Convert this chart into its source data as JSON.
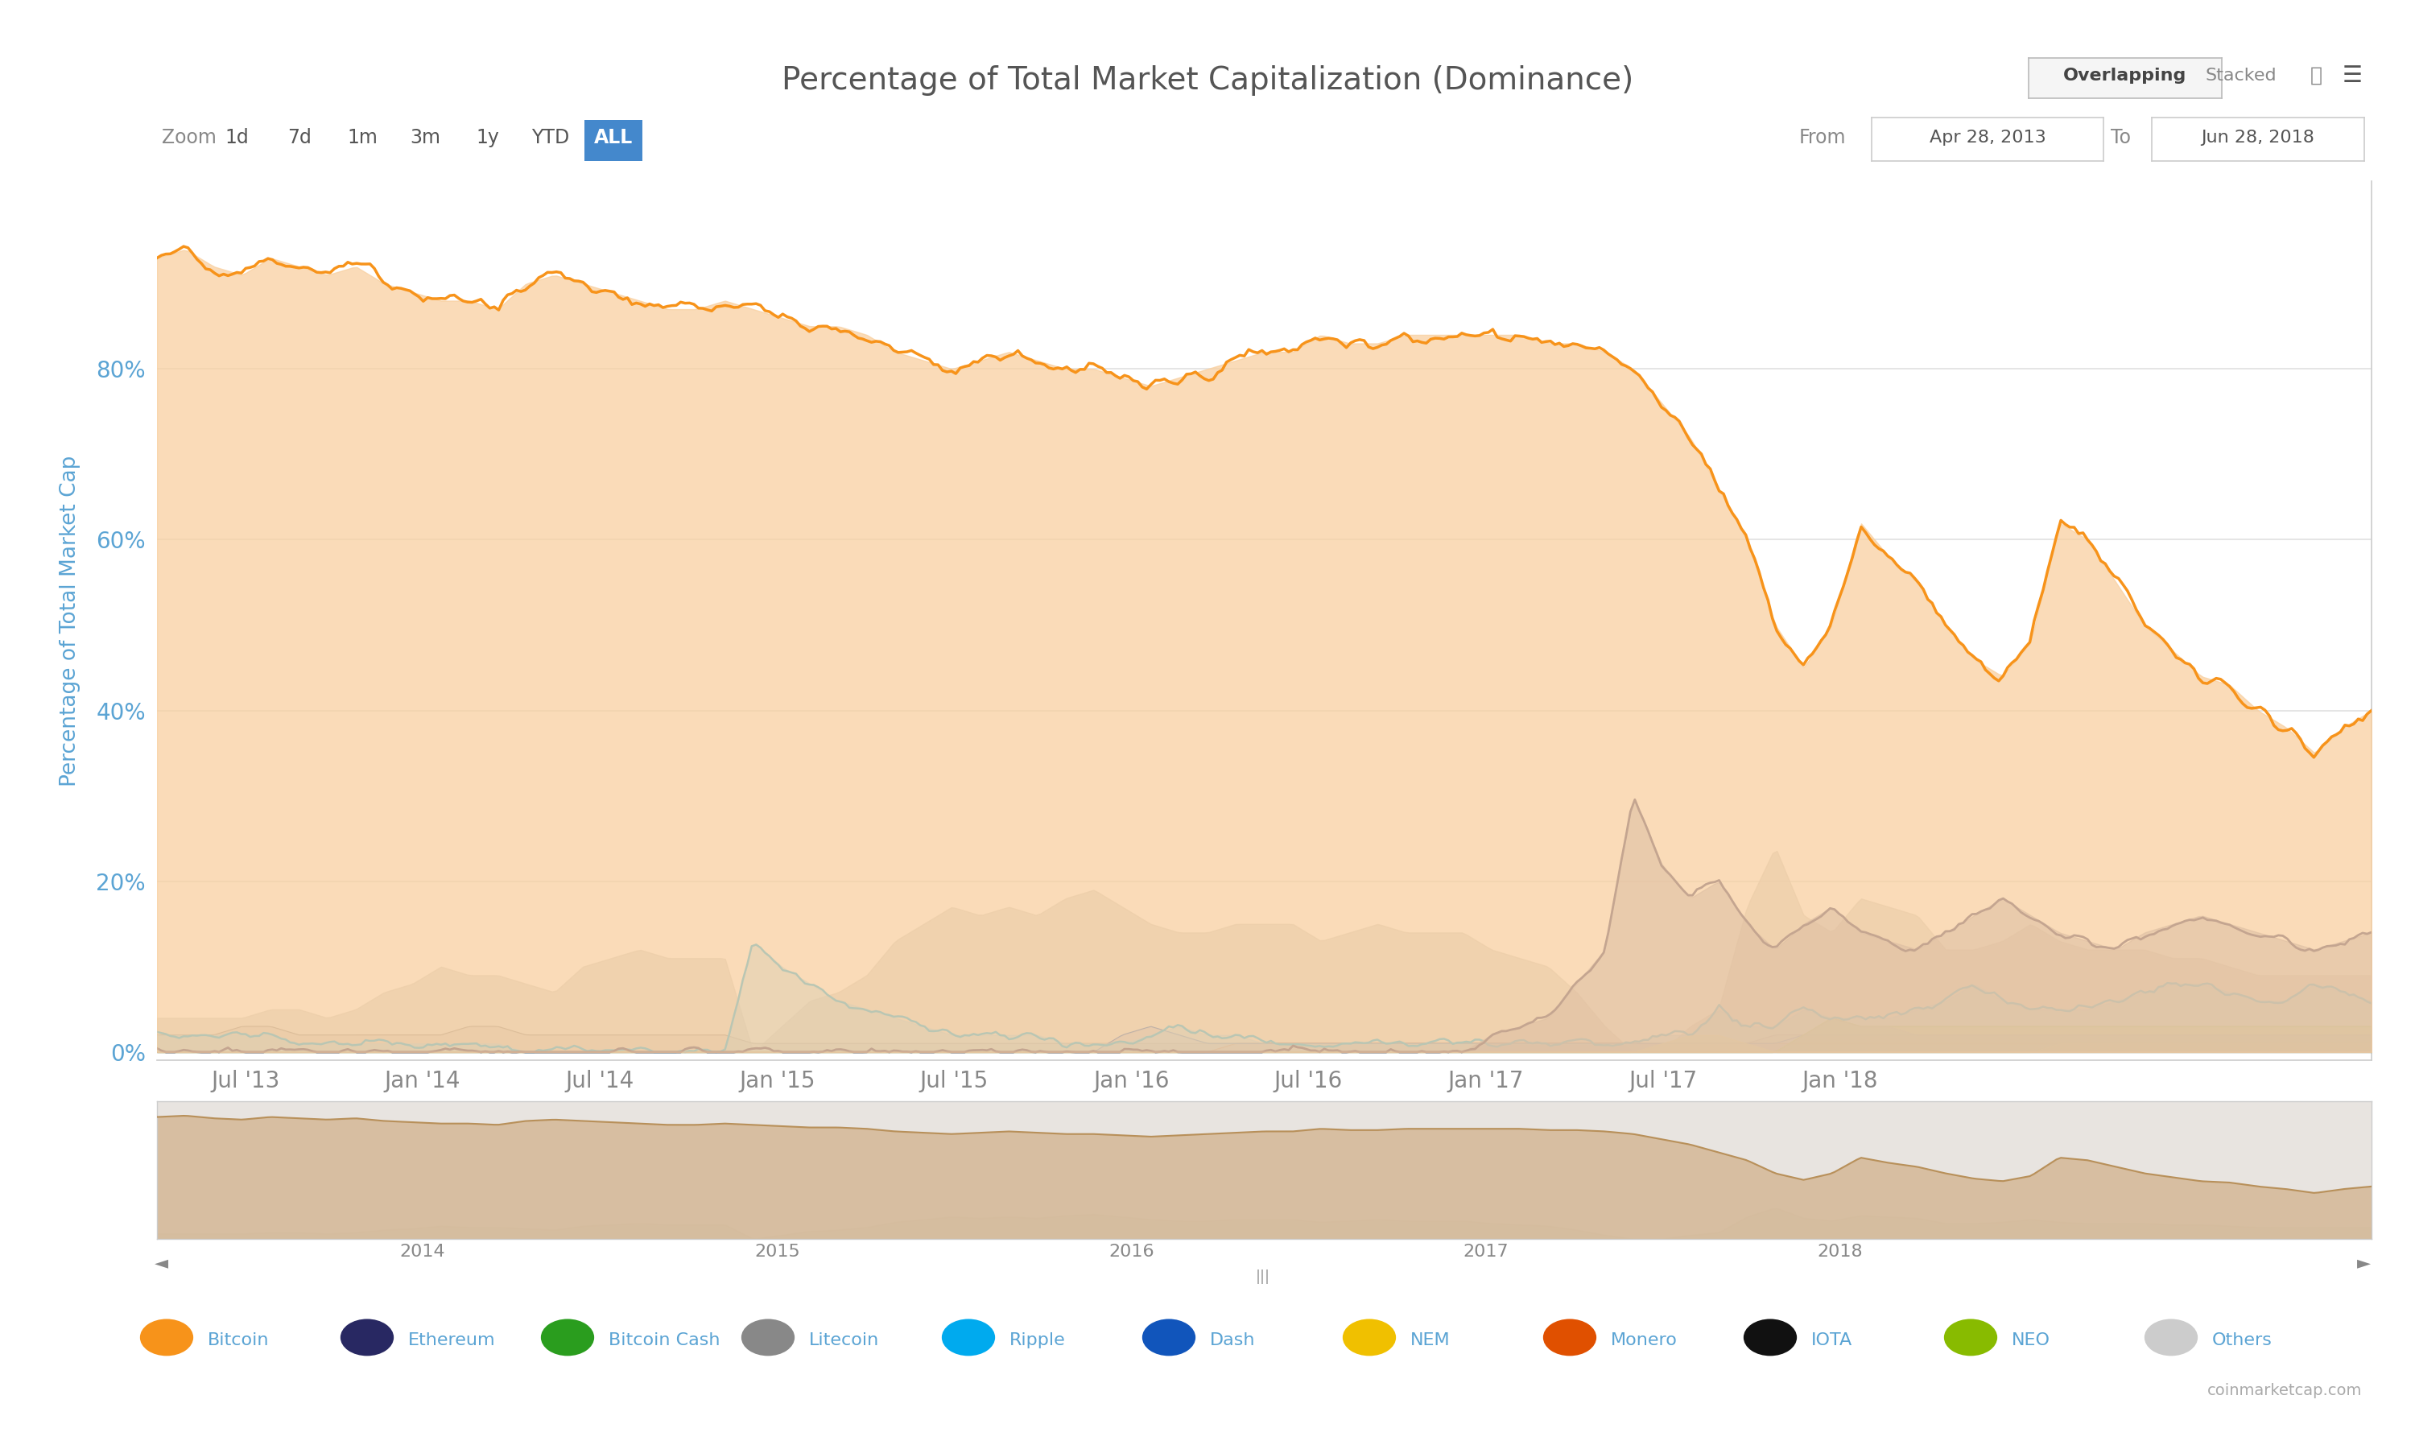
{
  "title": "Percentage of Total Market Capitalization (Dominance)",
  "ylabel": "Percentage of Total Market Cap",
  "bg_color": "#ffffff",
  "chart_bg": "#ffffff",
  "grid_color": "#e0e0e0",
  "title_color": "#555555",
  "axis_label_color": "#5ba4d4",
  "tick_color": "#aaaaaa",
  "zoom_labels": [
    "1d",
    "7d",
    "1m",
    "3m",
    "1y",
    "YTD",
    "ALL"
  ],
  "zoom_active": "ALL",
  "from_date": "Apr 28, 2013",
  "to_date": "Jun 28, 2018",
  "legend_items": [
    {
      "label": "Bitcoin",
      "color": "#f7931a"
    },
    {
      "label": "Ethereum",
      "color": "#282862"
    },
    {
      "label": "Bitcoin Cash",
      "color": "#2a9d1e"
    },
    {
      "label": "Litecoin",
      "color": "#888888"
    },
    {
      "label": "Ripple",
      "color": "#00aaee"
    },
    {
      "label": "Dash",
      "color": "#1155bb"
    },
    {
      "label": "NEM",
      "color": "#f0c000"
    },
    {
      "label": "Monero",
      "color": "#e05000"
    },
    {
      "label": "IOTA",
      "color": "#111111"
    },
    {
      "label": "NEO",
      "color": "#88bb00"
    },
    {
      "label": "Others",
      "color": "#cccccc"
    }
  ],
  "ytick_labels": [
    "0%",
    "20%",
    "40%",
    "60%",
    "80%"
  ],
  "ytick_values": [
    0,
    20,
    40,
    60,
    80
  ],
  "xtick_labels": [
    "Jul '13",
    "Jan '14",
    "Jul '14",
    "Jan '15",
    "Jul '15",
    "Jan '16",
    "Jul '16",
    "Jan '17",
    "Jul '17",
    "Jan '18"
  ],
  "minimap_year_labels": [
    "2014",
    "2015",
    "2016",
    "2017",
    "2018"
  ],
  "bitcoin_color": "#f7931a",
  "bitcoin_fill": "#f9d0a0",
  "ethereum_color": "#282862",
  "ethereum_fill": "#8888aa",
  "ripple_color": "#00aaee",
  "ripple_fill": "#88ccee",
  "litecoin_color": "#888888",
  "litecoin_fill": "#bbbbbb",
  "dash_color": "#1155bb",
  "dash_fill": "#8899cc",
  "nem_color": "#f0c000",
  "nem_fill": "#f8e060",
  "monero_color": "#cc4400",
  "monero_fill": "#dd8866",
  "iota_color": "#111111",
  "iota_fill": "#444444",
  "neo_color": "#88bb00",
  "neo_fill": "#aad000",
  "others_fill": "#c0c0c0",
  "minimap_fill": "#d4b896",
  "minimap_line": "#b8905a",
  "minimap_bg": "#e8e4e0"
}
